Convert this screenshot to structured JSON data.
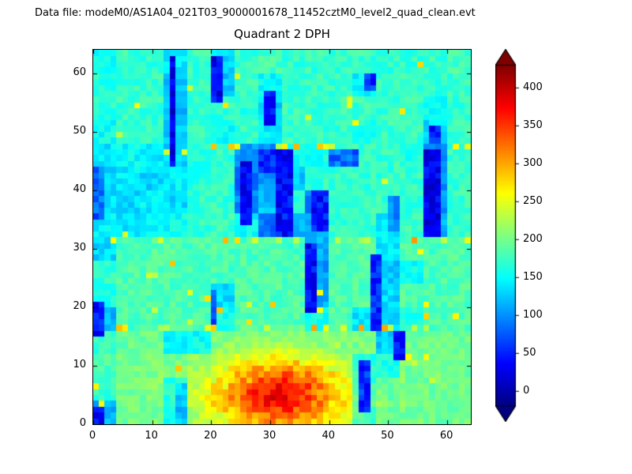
{
  "figure": {
    "data_file_label": "Data file: modeM0/AS1A04_021T03_9000001678_11452cztM0_level2_quad_clean.evt",
    "background": "#ffffff"
  },
  "chart_data": {
    "type": "heatmap",
    "title": "Quadrant 2 DPH",
    "grid_size": 64,
    "xlim": [
      0,
      64
    ],
    "ylim": [
      0,
      64
    ],
    "x_ticks": [
      0,
      10,
      20,
      30,
      40,
      50,
      60
    ],
    "y_ticks": [
      0,
      10,
      20,
      30,
      40,
      50,
      60
    ],
    "colormap": "jet",
    "vmin": -20,
    "vmax": 430,
    "colorbar_ticks": [
      0,
      50,
      100,
      150,
      200,
      250,
      300,
      350,
      400
    ],
    "colorbar_extend": "both",
    "grid_on": false,
    "legend": "none",
    "coarse_cell": 4,
    "values_coarse": [
      [
        150,
        172,
        170,
        140,
        172,
        130,
        172,
        178,
        170,
        172,
        172,
        172,
        168,
        170,
        172,
        178
      ],
      [
        162,
        172,
        172,
        120,
        170,
        125,
        172,
        150,
        162,
        172,
        172,
        140,
        172,
        172,
        170,
        172
      ],
      [
        165,
        172,
        172,
        120,
        172,
        168,
        165,
        130,
        172,
        172,
        172,
        172,
        172,
        172,
        155,
        172
      ],
      [
        152,
        172,
        172,
        125,
        172,
        152,
        172,
        145,
        172,
        172,
        172,
        162,
        172,
        172,
        135,
        172
      ],
      [
        140,
        150,
        142,
        132,
        162,
        170,
        105,
        95,
        150,
        160,
        172,
        172,
        172,
        162,
        105,
        172
      ],
      [
        132,
        142,
        132,
        142,
        165,
        172,
        85,
        105,
        125,
        170,
        172,
        172,
        170,
        172,
        95,
        172
      ],
      [
        136,
        132,
        142,
        132,
        170,
        172,
        95,
        122,
        170,
        95,
        172,
        172,
        172,
        170,
        102,
        172
      ],
      [
        142,
        136,
        146,
        152,
        170,
        172,
        150,
        85,
        112,
        112,
        172,
        172,
        142,
        172,
        112,
        172
      ],
      [
        132,
        180,
        183,
        183,
        183,
        183,
        183,
        183,
        176,
        115,
        183,
        183,
        142,
        183,
        180,
        183
      ],
      [
        170,
        183,
        183,
        183,
        183,
        180,
        183,
        183,
        183,
        105,
        183,
        183,
        125,
        152,
        183,
        183
      ],
      [
        162,
        183,
        183,
        183,
        183,
        135,
        183,
        183,
        183,
        112,
        183,
        183,
        132,
        183,
        183,
        183
      ],
      [
        115,
        183,
        183,
        183,
        183,
        152,
        183,
        183,
        183,
        152,
        183,
        135,
        135,
        162,
        183,
        183
      ],
      [
        172,
        195,
        195,
        145,
        148,
        195,
        195,
        195,
        195,
        195,
        195,
        195,
        125,
        195,
        195,
        195
      ],
      [
        182,
        198,
        198,
        192,
        198,
        198,
        200,
        200,
        200,
        200,
        198,
        150,
        155,
        198,
        198,
        198
      ],
      [
        172,
        198,
        198,
        155,
        198,
        200,
        202,
        202,
        202,
        202,
        200,
        150,
        182,
        198,
        198,
        198
      ],
      [
        115,
        198,
        196,
        145,
        198,
        200,
        200,
        202,
        202,
        200,
        198,
        160,
        190,
        198,
        198,
        198
      ]
    ],
    "hot_blob": {
      "cx": 31,
      "cy": 4.5,
      "sx": 8,
      "sy": 4.5,
      "amp": 175
    },
    "noise_sigma": 16,
    "seed": 12345,
    "boundary_rows_y": [
      16,
      31,
      47
    ],
    "boundary_speckle_prob": 0.22,
    "boundary_speckle_value": 262,
    "speckle_prob": 0.012,
    "speckle_value": 260,
    "dark_streaks": [
      {
        "x": 13,
        "y": 44,
        "w": 1,
        "h": 19,
        "v": 25
      },
      {
        "x": 20,
        "y": 55,
        "w": 2,
        "h": 8,
        "v": 35
      },
      {
        "x": 29,
        "y": 51,
        "w": 2,
        "h": 6,
        "v": 45
      },
      {
        "x": 25,
        "y": 34,
        "w": 2,
        "h": 11,
        "v": 35
      },
      {
        "x": 31,
        "y": 32,
        "w": 3,
        "h": 15,
        "v": 40
      },
      {
        "x": 28,
        "y": 43,
        "w": 3,
        "h": 4,
        "v": 55
      },
      {
        "x": 37,
        "y": 33,
        "w": 3,
        "h": 7,
        "v": 45
      },
      {
        "x": 36,
        "y": 19,
        "w": 2,
        "h": 12,
        "v": 40
      },
      {
        "x": 40,
        "y": 44,
        "w": 5,
        "h": 3,
        "v": 85
      },
      {
        "x": 47,
        "y": 16,
        "w": 2,
        "h": 13,
        "v": 55
      },
      {
        "x": 50,
        "y": 33,
        "w": 2,
        "h": 6,
        "v": 100
      },
      {
        "x": 56,
        "y": 32,
        "w": 3,
        "h": 15,
        "v": 30
      },
      {
        "x": 57,
        "y": 48,
        "w": 2,
        "h": 3,
        "v": 50
      },
      {
        "x": 46,
        "y": 57,
        "w": 2,
        "h": 3,
        "v": 60
      },
      {
        "x": 45,
        "y": 2,
        "w": 2,
        "h": 9,
        "v": 55
      },
      {
        "x": 51,
        "y": 11,
        "w": 2,
        "h": 5,
        "v": 45
      },
      {
        "x": 14,
        "y": 0,
        "w": 2,
        "h": 7,
        "v": 120
      },
      {
        "x": 0,
        "y": 35,
        "w": 2,
        "h": 9,
        "v": 80
      },
      {
        "x": 0,
        "y": 15,
        "w": 2,
        "h": 6,
        "v": 45
      },
      {
        "x": 0,
        "y": 0,
        "w": 2,
        "h": 3,
        "v": 35
      },
      {
        "x": 20,
        "y": 17,
        "w": 1,
        "h": 6,
        "v": 70
      }
    ]
  }
}
